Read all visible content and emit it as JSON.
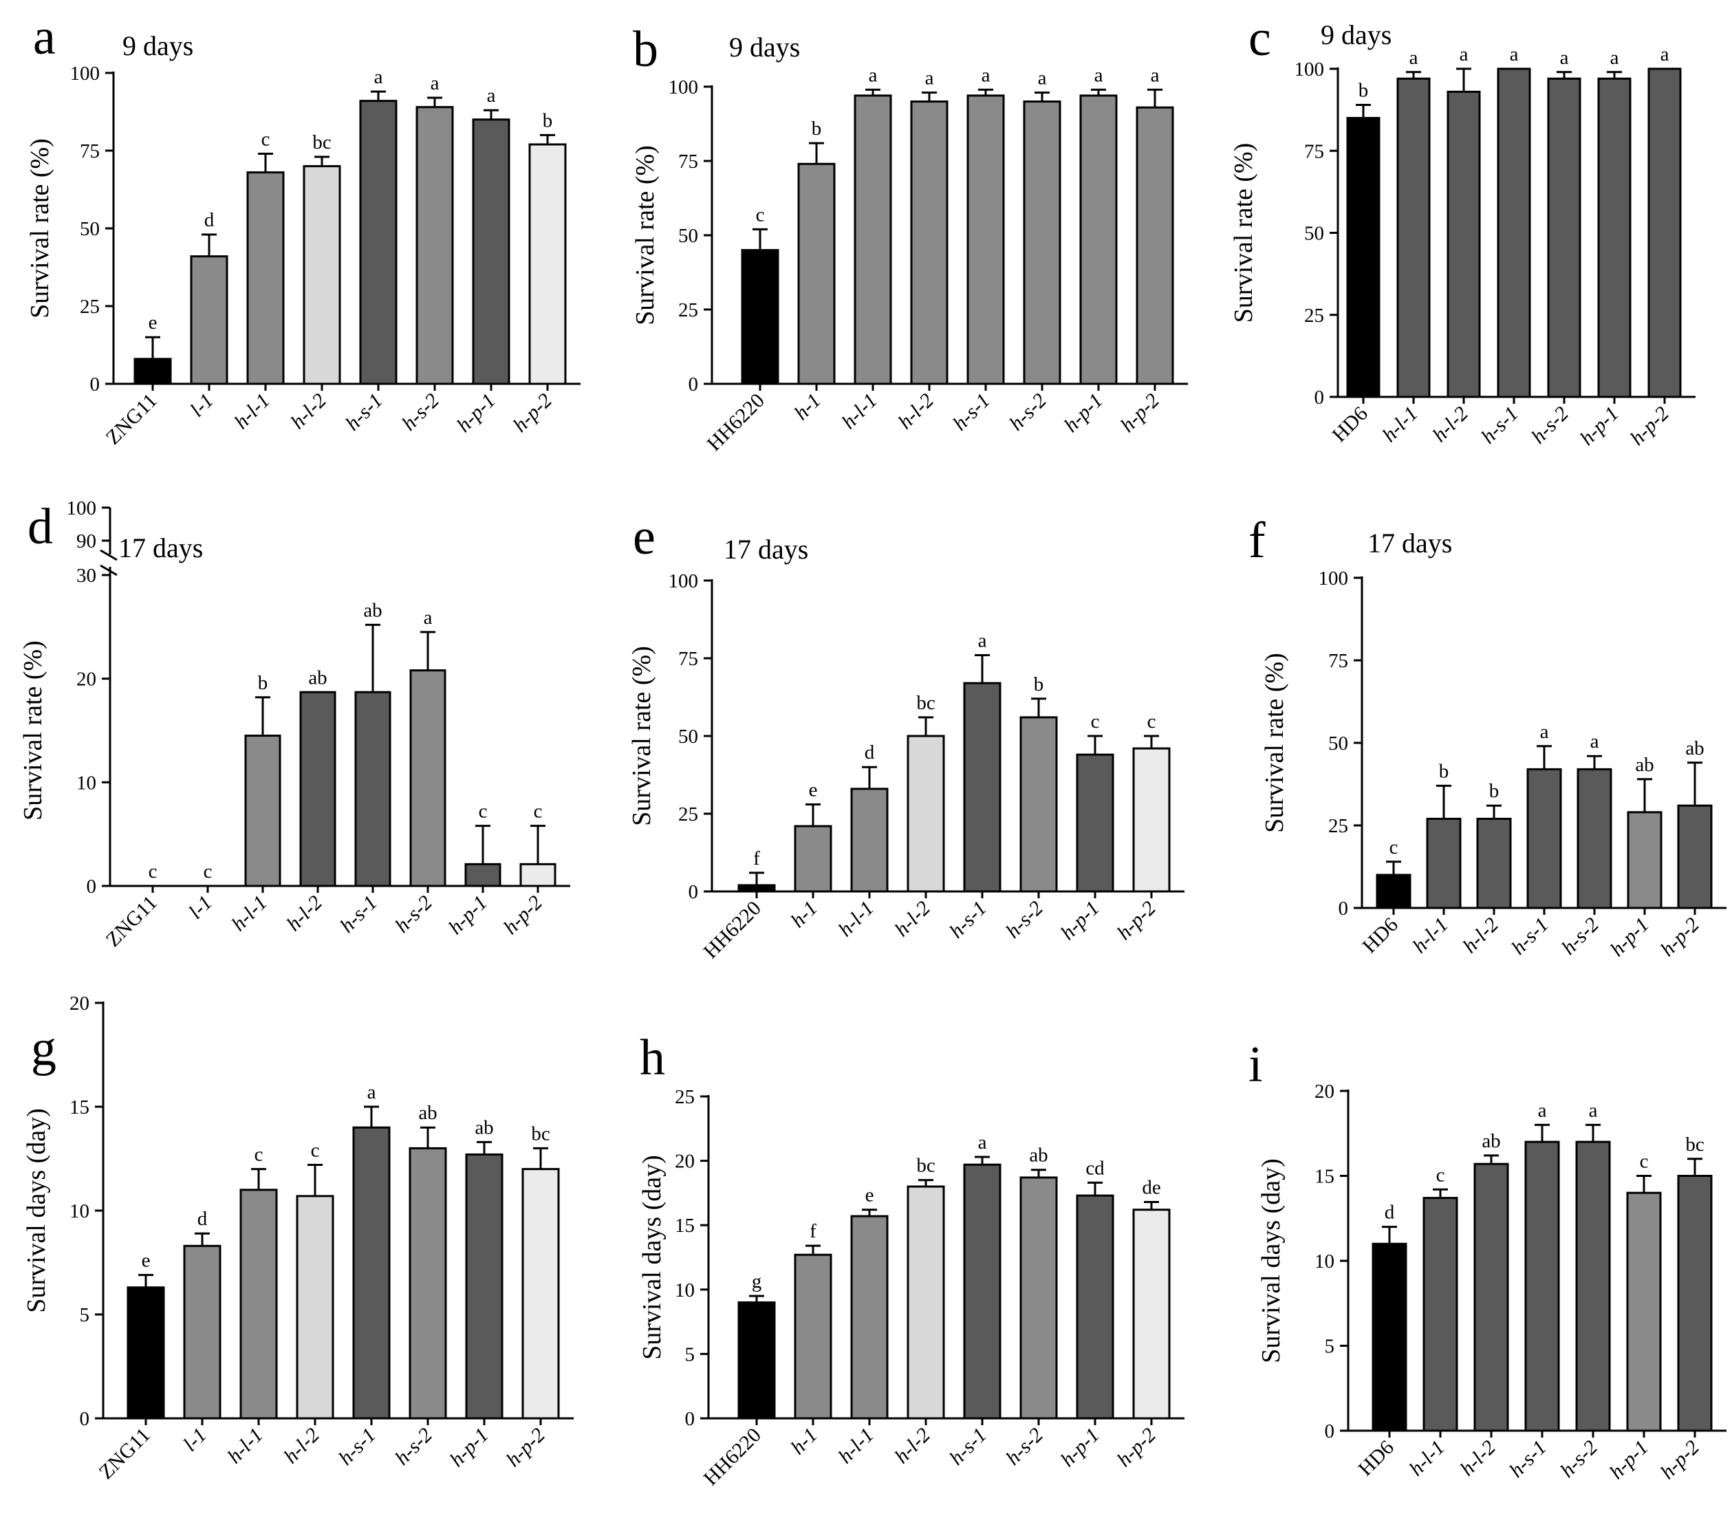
{
  "colors": {
    "black": "#000000",
    "darkgray": "#5a5a5a",
    "midgray": "#8a8a8a",
    "lightgray": "#d8d8d8",
    "palegray": "#ebebeb",
    "axis": "#000000"
  },
  "chart_data": [
    {
      "id": "a",
      "panel_label": "a",
      "type": "bar",
      "title": "9 days",
      "ylabel": "Survival rate (%)",
      "xlabel": "",
      "ylim": [
        0,
        100
      ],
      "yticks": [
        "0",
        "25",
        "50",
        "75",
        "100"
      ],
      "categories": [
        "ZNG11",
        "l-1",
        "h-l-1",
        "h-l-2",
        "h-s-1",
        "h-s-2",
        "h-p-1",
        "h-p-2"
      ],
      "values": [
        8,
        41,
        68,
        70,
        91,
        89,
        85,
        77
      ],
      "errors": [
        7,
        7,
        6,
        3,
        3,
        3,
        3,
        3
      ],
      "significance": [
        "e",
        "d",
        "c",
        "bc",
        "a",
        "a",
        "a",
        "b"
      ],
      "fills": [
        "black",
        "midgray",
        "midgray",
        "lightgray",
        "darkgray",
        "midgray",
        "darkgray",
        "palegray"
      ]
    },
    {
      "id": "b",
      "panel_label": "b",
      "type": "bar",
      "title": "9 days",
      "ylabel": "Survival rate (%)",
      "xlabel": "",
      "ylim": [
        0,
        100
      ],
      "yticks": [
        "0",
        "25",
        "50",
        "75",
        "100"
      ],
      "categories": [
        "HH6220",
        "h-1",
        "h-l-1",
        "h-l-2",
        "h-s-1",
        "h-s-2",
        "h-p-1",
        "h-p-2"
      ],
      "values": [
        45,
        74,
        97,
        95,
        97,
        95,
        97,
        93
      ],
      "errors": [
        7,
        7,
        2,
        3,
        2,
        3,
        2,
        6
      ],
      "significance": [
        "c",
        "b",
        "a",
        "a",
        "a",
        "a",
        "a",
        "a"
      ],
      "fills": [
        "black",
        "midgray",
        "midgray",
        "midgray",
        "midgray",
        "midgray",
        "midgray",
        "midgray"
      ]
    },
    {
      "id": "c",
      "panel_label": "c",
      "type": "bar",
      "title": "9 days",
      "ylabel": "Survival rate (%)",
      "xlabel": "",
      "ylim": [
        0,
        100
      ],
      "yticks": [
        "0",
        "25",
        "50",
        "75",
        "100"
      ],
      "categories": [
        "HD6",
        "h-l-1",
        "h-l-2",
        "h-s-1",
        "h-s-2",
        "h-p-1",
        "h-p-2"
      ],
      "values": [
        85,
        97,
        93,
        100,
        97,
        97,
        100
      ],
      "errors": [
        4,
        2,
        7,
        0,
        2,
        2,
        0
      ],
      "significance": [
        "b",
        "a",
        "a",
        "a",
        "a",
        "a",
        "a"
      ],
      "fills": [
        "black",
        "darkgray",
        "darkgray",
        "darkgray",
        "darkgray",
        "darkgray",
        "darkgray"
      ]
    },
    {
      "id": "d",
      "panel_label": "d",
      "type": "bar",
      "title": "17 days",
      "ylabel": "Survival rate (%)",
      "xlabel": "",
      "ylim": [
        0,
        30
      ],
      "broken_axis_upper_ticks": [
        "90",
        "100"
      ],
      "yticks": [
        "0",
        "10",
        "20",
        "30"
      ],
      "categories": [
        "ZNG11",
        "l-1",
        "h-l-1",
        "h-l-2",
        "h-s-1",
        "h-s-2",
        "h-p-1",
        "h-p-2"
      ],
      "values": [
        0,
        0,
        14.5,
        18.7,
        18.7,
        20.8,
        2.1,
        2.1
      ],
      "errors": [
        0,
        0,
        3.7,
        0,
        6.5,
        3.7,
        3.7,
        3.7
      ],
      "significance": [
        "c",
        "c",
        "b",
        "ab",
        "ab",
        "a",
        "c",
        "c"
      ],
      "fills": [
        "black",
        "midgray",
        "midgray",
        "darkgray",
        "darkgray",
        "midgray",
        "darkgray",
        "palegray"
      ]
    },
    {
      "id": "e",
      "panel_label": "e",
      "type": "bar",
      "title": "17 days",
      "ylabel": "Survival rate (%)",
      "xlabel": "",
      "ylim": [
        0,
        100
      ],
      "yticks": [
        "0",
        "25",
        "50",
        "75",
        "100"
      ],
      "categories": [
        "HH6220",
        "h-1",
        "h-l-1",
        "h-l-2",
        "h-s-1",
        "h-s-2",
        "h-p-1",
        "h-p-2"
      ],
      "values": [
        2,
        21,
        33,
        50,
        67,
        56,
        44,
        46
      ],
      "errors": [
        4,
        7,
        7,
        6,
        9,
        6,
        6,
        4
      ],
      "significance": [
        "f",
        "e",
        "d",
        "bc",
        "a",
        "b",
        "c",
        "c"
      ],
      "fills": [
        "black",
        "midgray",
        "midgray",
        "lightgray",
        "darkgray",
        "midgray",
        "darkgray",
        "palegray"
      ]
    },
    {
      "id": "f",
      "panel_label": "f",
      "type": "bar",
      "title": "17 days",
      "ylabel": "Survival rate (%)",
      "xlabel": "",
      "ylim": [
        0,
        100
      ],
      "yticks": [
        "0",
        "25",
        "50",
        "75",
        "100"
      ],
      "categories": [
        "HD6",
        "h-l-1",
        "h-l-2",
        "h-s-1",
        "h-s-2",
        "h-p-1",
        "h-p-2"
      ],
      "values": [
        10,
        27,
        27,
        42,
        42,
        29,
        31
      ],
      "errors": [
        4,
        10,
        4,
        7,
        4,
        10,
        13
      ],
      "significance": [
        "c",
        "b",
        "b",
        "a",
        "a",
        "ab",
        "ab"
      ],
      "fills": [
        "black",
        "darkgray",
        "darkgray",
        "darkgray",
        "darkgray",
        "midgray",
        "darkgray"
      ]
    },
    {
      "id": "g",
      "panel_label": "g",
      "type": "bar",
      "title": "",
      "ylabel": "Survival days (day)",
      "xlabel": "",
      "ylim": [
        0,
        20
      ],
      "yticks": [
        "0",
        "5",
        "10",
        "15",
        "20"
      ],
      "categories": [
        "ZNG11",
        "l-1",
        "h-l-1",
        "h-l-2",
        "h-s-1",
        "h-s-2",
        "h-p-1",
        "h-p-2"
      ],
      "values": [
        6.3,
        8.3,
        11,
        10.7,
        14,
        13,
        12.7,
        12
      ],
      "errors": [
        0.6,
        0.6,
        1,
        1.5,
        1,
        1,
        0.6,
        1
      ],
      "significance": [
        "e",
        "d",
        "c",
        "c",
        "a",
        "ab",
        "ab",
        "bc"
      ],
      "fills": [
        "black",
        "midgray",
        "midgray",
        "lightgray",
        "darkgray",
        "midgray",
        "darkgray",
        "palegray"
      ]
    },
    {
      "id": "h",
      "panel_label": "h",
      "type": "bar",
      "title": "",
      "ylabel": "Survival days (day)",
      "xlabel": "",
      "ylim": [
        0,
        25
      ],
      "yticks": [
        "0",
        "5",
        "10",
        "15",
        "20",
        "25"
      ],
      "categories": [
        "HH6220",
        "h-1",
        "h-l-1",
        "h-l-2",
        "h-s-1",
        "h-s-2",
        "h-p-1",
        "h-p-2"
      ],
      "values": [
        9,
        12.7,
        15.7,
        18,
        19.7,
        18.7,
        17.3,
        16.2
      ],
      "errors": [
        0.5,
        0.7,
        0.5,
        0.5,
        0.6,
        0.6,
        1,
        0.6
      ],
      "significance": [
        "g",
        "f",
        "e",
        "bc",
        "a",
        "ab",
        "cd",
        "de"
      ],
      "fills": [
        "black",
        "midgray",
        "midgray",
        "lightgray",
        "darkgray",
        "midgray",
        "darkgray",
        "palegray"
      ]
    },
    {
      "id": "i",
      "panel_label": "i",
      "type": "bar",
      "title": "",
      "ylabel": "Survival days (day)",
      "xlabel": "",
      "ylim": [
        0,
        20
      ],
      "yticks": [
        "0",
        "5",
        "10",
        "15",
        "20"
      ],
      "categories": [
        "HD6",
        "h-l-1",
        "h-l-2",
        "h-s-1",
        "h-s-2",
        "h-p-1",
        "h-p-2"
      ],
      "values": [
        11,
        13.7,
        15.7,
        17,
        17,
        14,
        15
      ],
      "errors": [
        1,
        0.5,
        0.5,
        1,
        1,
        1,
        1
      ],
      "significance": [
        "d",
        "c",
        "ab",
        "a",
        "a",
        "c",
        "bc"
      ],
      "fills": [
        "black",
        "darkgray",
        "darkgray",
        "darkgray",
        "darkgray",
        "midgray",
        "darkgray"
      ]
    }
  ]
}
